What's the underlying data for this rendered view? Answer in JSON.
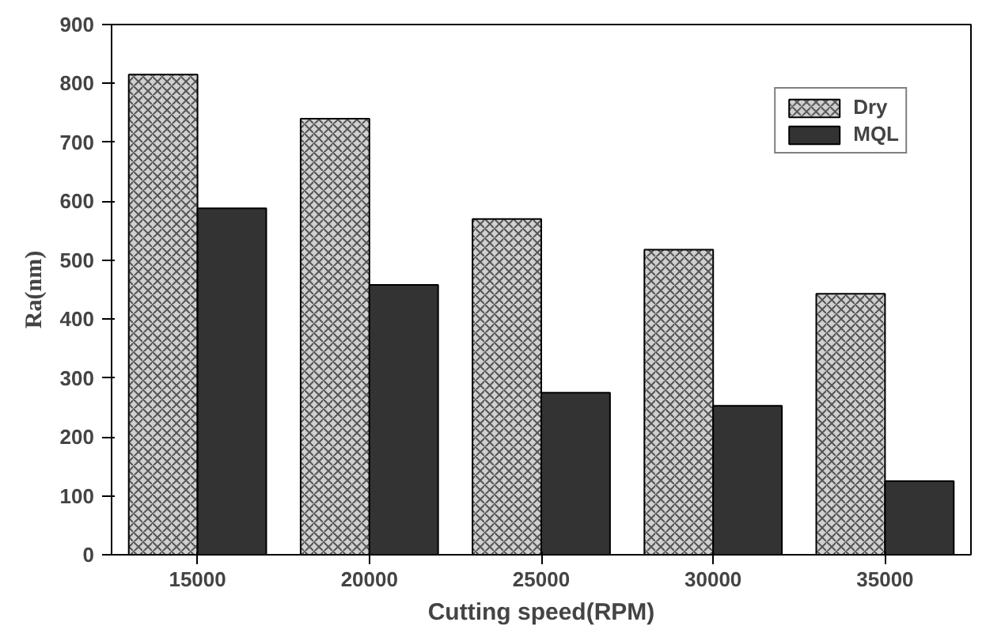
{
  "chart_data": {
    "type": "bar",
    "xlabel": "Cutting speed(RPM)",
    "ylabel": "Ra(nm)",
    "categories": [
      "15000",
      "20000",
      "25000",
      "30000",
      "35000"
    ],
    "series": [
      {
        "name": "Dry",
        "color": "#d0d0d0",
        "values": [
          815,
          740,
          570,
          518,
          443
        ]
      },
      {
        "name": "MQL",
        "color": "#333333",
        "values": [
          588,
          458,
          275,
          253,
          125
        ]
      }
    ],
    "ylim": [
      0,
      900
    ],
    "yticks": [
      0,
      100,
      200,
      300,
      400,
      500,
      600,
      700,
      800,
      900
    ],
    "grid": false,
    "legend": "top right"
  }
}
